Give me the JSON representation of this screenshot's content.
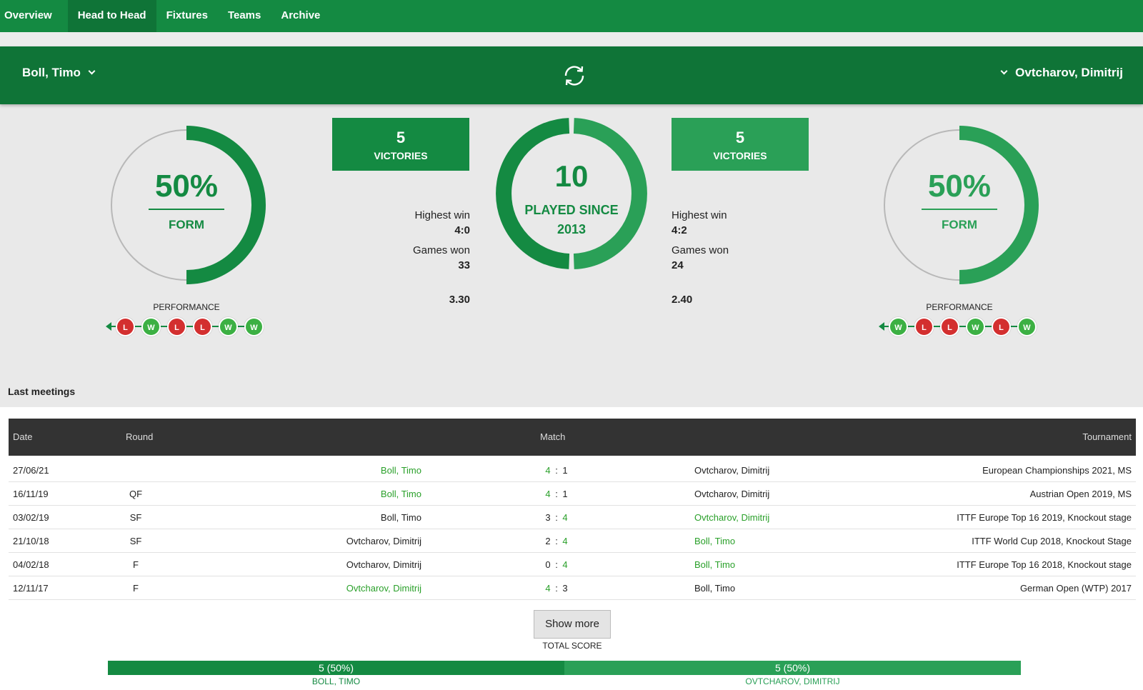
{
  "nav": {
    "tabs": [
      {
        "label": "Overview",
        "active": false
      },
      {
        "label": "Head to Head",
        "active": true
      },
      {
        "label": "Fixtures",
        "active": false
      },
      {
        "label": "Teams",
        "active": false
      },
      {
        "label": "Archive",
        "active": false
      }
    ]
  },
  "colors": {
    "nav": "#148a42",
    "bar": "#0f7437",
    "player1": "#148a42",
    "player2": "#2aa057",
    "win": "#3cb043",
    "loss": "#d32f2f"
  },
  "players": {
    "left": {
      "name": "Boll, Timo",
      "form_percent": "50%",
      "form_value": 0.5,
      "form_label": "FORM",
      "performance_label": "PERFORMANCE",
      "performance": [
        "L",
        "W",
        "L",
        "L",
        "W",
        "W"
      ],
      "victories": "5",
      "victories_label": "VICTORIES",
      "highest_win_label": "Highest win",
      "highest_win": "4:0",
      "games_won_label": "Games won",
      "games_won": "33",
      "extra_value": "3.30"
    },
    "right": {
      "name": "Ovtcharov, Dimitrij",
      "form_percent": "50%",
      "form_value": 0.5,
      "form_label": "FORM",
      "performance_label": "PERFORMANCE",
      "performance": [
        "W",
        "L",
        "L",
        "W",
        "L",
        "W"
      ],
      "victories": "5",
      "victories_label": "VICTORIES",
      "highest_win_label": "Highest win",
      "highest_win": "4:2",
      "games_won_label": "Games won",
      "games_won": "24",
      "extra_value": "2.40"
    }
  },
  "summary": {
    "played": "10",
    "played_label": "PLAYED SINCE",
    "since_year": "2013",
    "left_share": 0.5
  },
  "meetings": {
    "title": "Last meetings",
    "columns": {
      "date": "Date",
      "round": "Round",
      "match": "Match",
      "tournament": "Tournament"
    },
    "rows": [
      {
        "date": "27/06/21",
        "round": "",
        "home": "Boll, Timo",
        "home_score": "4",
        "away_score": "1",
        "away": "Ovtcharov, Dimitrij",
        "tournament": "European Championships 2021, MS",
        "winner": "home"
      },
      {
        "date": "16/11/19",
        "round": "QF",
        "home": "Boll, Timo",
        "home_score": "4",
        "away_score": "1",
        "away": "Ovtcharov, Dimitrij",
        "tournament": "Austrian Open 2019, MS",
        "winner": "home"
      },
      {
        "date": "03/02/19",
        "round": "SF",
        "home": "Boll, Timo",
        "home_score": "3",
        "away_score": "4",
        "away": "Ovtcharov, Dimitrij",
        "tournament": "ITTF Europe Top 16 2019, Knockout stage",
        "winner": "away"
      },
      {
        "date": "21/10/18",
        "round": "SF",
        "home": "Ovtcharov, Dimitrij",
        "home_score": "2",
        "away_score": "4",
        "away": "Boll, Timo",
        "tournament": "ITTF World Cup 2018, Knockout Stage",
        "winner": "away"
      },
      {
        "date": "04/02/18",
        "round": "F",
        "home": "Ovtcharov, Dimitrij",
        "home_score": "0",
        "away_score": "4",
        "away": "Boll, Timo",
        "tournament": "ITTF Europe Top 16 2018, Knockout stage",
        "winner": "away"
      },
      {
        "date": "12/11/17",
        "round": "F",
        "home": "Ovtcharov, Dimitrij",
        "home_score": "4",
        "away_score": "3",
        "away": "Boll, Timo",
        "tournament": "German Open (WTP) 2017",
        "winner": "home"
      }
    ],
    "show_more_label": "Show more"
  },
  "total_score": {
    "label": "TOTAL SCORE",
    "left_text": "5 (50%)",
    "right_text": "5 (50%)",
    "left_share": 0.5,
    "left_name": "BOLL, TIMO",
    "right_name": "OVTCHAROV, DIMITRIJ"
  }
}
